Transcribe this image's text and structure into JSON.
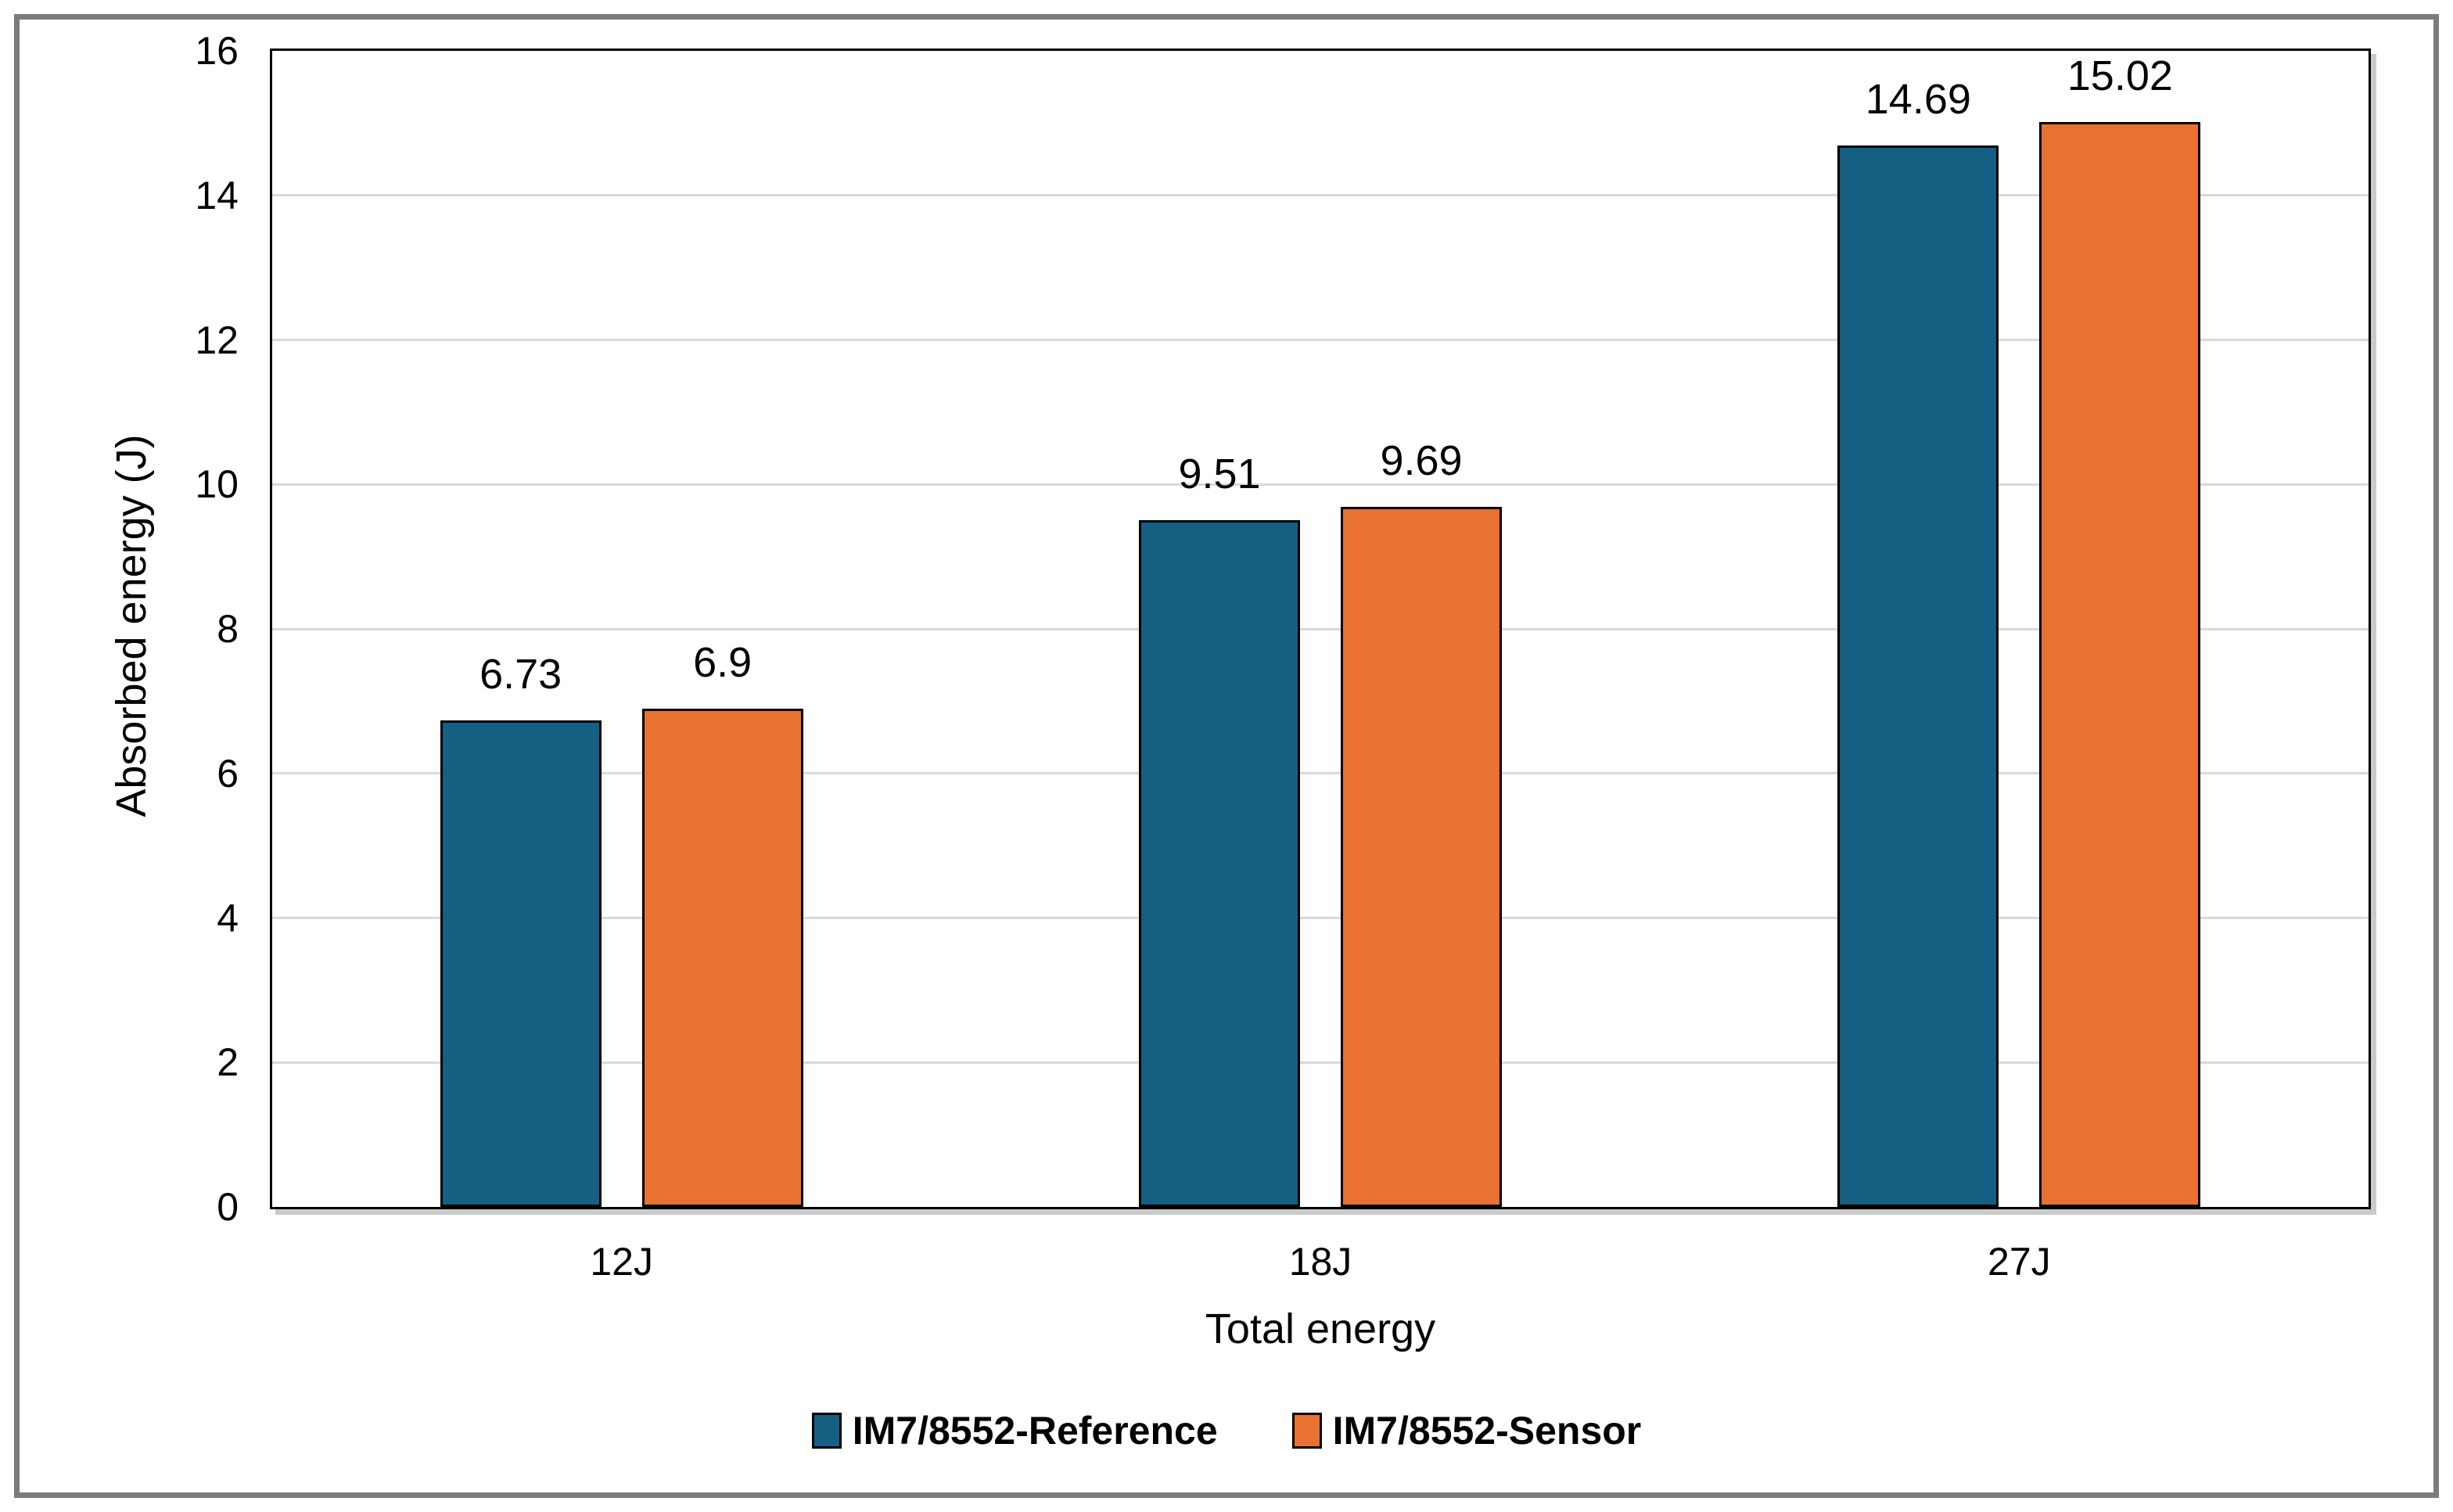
{
  "chart_data": {
    "type": "bar",
    "categories": [
      "12J",
      "18J",
      "27J"
    ],
    "series": [
      {
        "name": "IM7/8552-Reference",
        "color": "#156082",
        "values": [
          6.73,
          9.51,
          14.69
        ],
        "labels": [
          "6.73",
          "9.51",
          "14.69"
        ]
      },
      {
        "name": "IM7/8552-Sensor",
        "color": "#E97132",
        "values": [
          6.9,
          9.69,
          15.02
        ],
        "labels": [
          "6.9",
          "9.69",
          "15.02"
        ]
      }
    ],
    "title": "",
    "xlabel": "Total energy",
    "ylabel": "Absorbed energy (J)",
    "ylim": [
      0,
      16
    ],
    "ytick_step": 2,
    "yticks": [
      0,
      2,
      4,
      6,
      8,
      10,
      12,
      14,
      16
    ],
    "grid": true,
    "legend_position": "bottom",
    "colors": {
      "grid": "#d9d9d9",
      "axis": "#000000",
      "bar_border": "#000000",
      "figure_border": "#7b7b7b"
    }
  }
}
